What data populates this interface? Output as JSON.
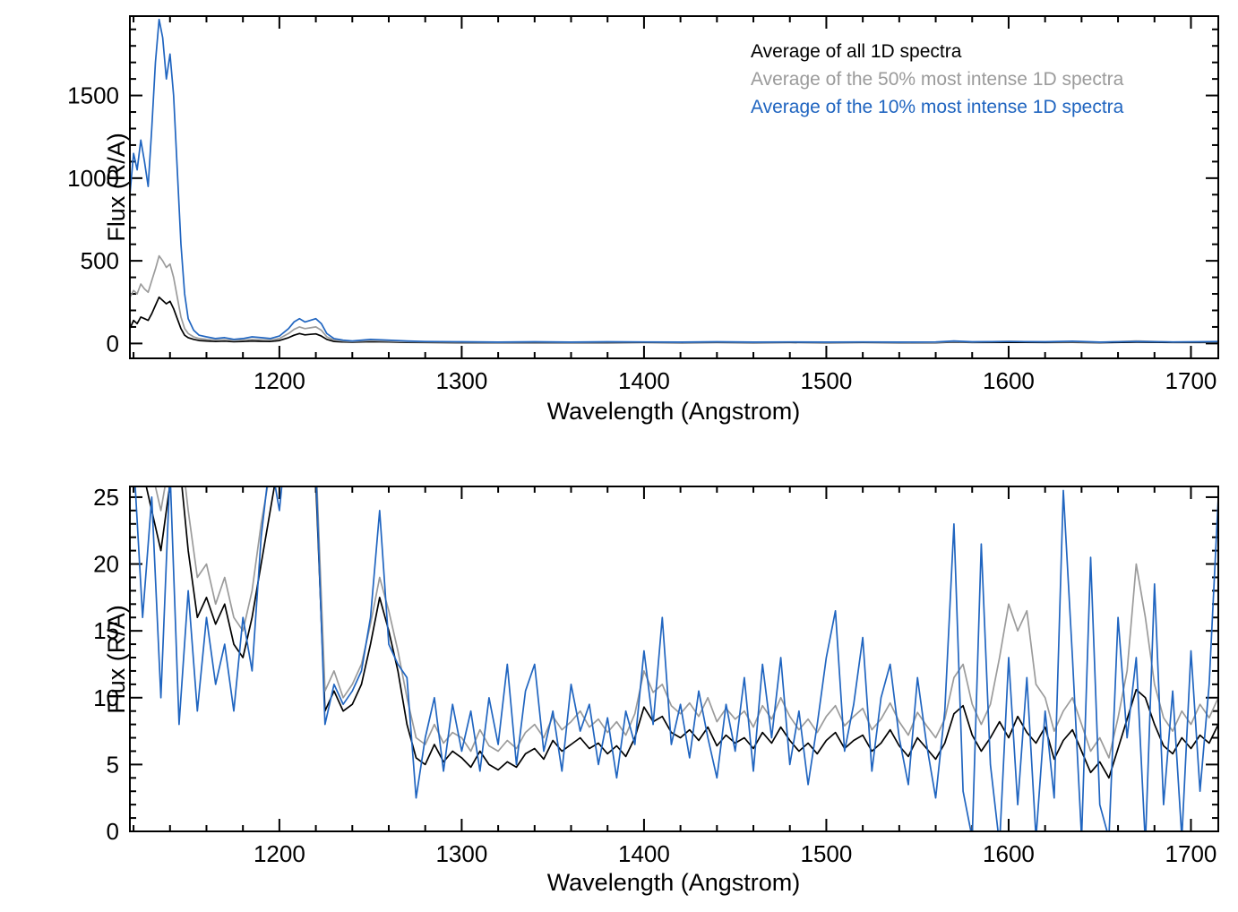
{
  "page": {
    "background": "#ffffff"
  },
  "colors": {
    "black": "#000000",
    "gray": "#9b9b9b",
    "blue": "#2065c0"
  },
  "chart_data": [
    {
      "type": "line",
      "panel": "top",
      "title": "",
      "xlabel": "Wavelength (Angstrom)",
      "ylabel": "Flux (R/A)",
      "xlim": [
        1118,
        1715
      ],
      "ylim": [
        -90,
        1980
      ],
      "xticks": [
        1200,
        1300,
        1400,
        1500,
        1600,
        1700
      ],
      "yticks": [
        0,
        500,
        1000,
        1500
      ],
      "x_minor_step": 20,
      "y_minor_step": 100,
      "grid": false,
      "legend": {
        "position": "top-right",
        "entries": [
          {
            "label": "Average of all 1D spectra",
            "color": "#000000"
          },
          {
            "label": "Average of the 50% most intense 1D spectra",
            "color": "#9b9b9b"
          },
          {
            "label": "Average of the 10% most intense 1D spectra",
            "color": "#2065c0"
          }
        ]
      },
      "x": [
        1118,
        1120,
        1122,
        1124,
        1126,
        1128,
        1130,
        1132,
        1134,
        1136,
        1138,
        1140,
        1142,
        1144,
        1146,
        1148,
        1150,
        1153,
        1156,
        1160,
        1165,
        1170,
        1175,
        1180,
        1185,
        1190,
        1195,
        1200,
        1205,
        1208,
        1211,
        1214,
        1217,
        1220,
        1223,
        1226,
        1230,
        1235,
        1240,
        1250,
        1260,
        1270,
        1280,
        1300,
        1320,
        1340,
        1360,
        1380,
        1400,
        1420,
        1440,
        1460,
        1480,
        1500,
        1520,
        1540,
        1560,
        1570,
        1580,
        1600,
        1620,
        1635,
        1650,
        1670,
        1690,
        1705,
        1715
      ],
      "series": [
        {
          "name": "avg-all",
          "color": "#000000",
          "y": [
            90,
            140,
            120,
            160,
            150,
            140,
            180,
            230,
            280,
            260,
            240,
            255,
            210,
            150,
            90,
            50,
            35,
            25,
            18,
            15,
            12,
            14,
            11,
            12,
            15,
            13,
            12,
            18,
            35,
            50,
            60,
            52,
            55,
            58,
            45,
            25,
            12,
            9,
            8,
            11,
            9,
            7,
            6,
            5,
            5,
            5,
            5,
            5,
            6,
            5,
            6,
            5,
            6,
            5,
            6,
            5,
            5,
            8,
            6,
            7,
            6,
            7,
            5,
            8,
            6,
            6,
            7
          ]
        },
        {
          "name": "avg-50pct",
          "color": "#9b9b9b",
          "y": [
            280,
            320,
            300,
            360,
            330,
            310,
            380,
            450,
            530,
            500,
            460,
            480,
            400,
            280,
            160,
            90,
            60,
            40,
            30,
            25,
            20,
            22,
            18,
            20,
            25,
            22,
            20,
            30,
            60,
            85,
            100,
            90,
            95,
            100,
            80,
            40,
            20,
            15,
            12,
            18,
            14,
            11,
            9,
            8,
            7,
            8,
            7,
            8,
            8,
            7,
            8,
            7,
            8,
            7,
            8,
            7,
            7,
            11,
            8,
            13,
            9,
            10,
            7,
            15,
            8,
            9,
            10
          ]
        },
        {
          "name": "avg-10pct",
          "color": "#2065c0",
          "y": [
            900,
            1150,
            1050,
            1230,
            1100,
            950,
            1300,
            1700,
            1960,
            1850,
            1600,
            1750,
            1500,
            1050,
            600,
            300,
            150,
            80,
            50,
            40,
            30,
            35,
            25,
            30,
            40,
            35,
            30,
            45,
            90,
            130,
            150,
            130,
            140,
            150,
            120,
            60,
            30,
            20,
            15,
            25,
            20,
            15,
            12,
            10,
            8,
            10,
            8,
            10,
            9,
            8,
            10,
            8,
            9,
            8,
            9,
            8,
            9,
            15,
            10,
            12,
            10,
            14,
            8,
            12,
            9,
            10,
            12
          ]
        }
      ]
    },
    {
      "type": "line",
      "panel": "bottom",
      "title": "",
      "xlabel": "Wavelength (Angstrom)",
      "ylabel": "Flux (R/A)",
      "xlim": [
        1118,
        1715
      ],
      "ylim": [
        0,
        25.8
      ],
      "xticks": [
        1200,
        1300,
        1400,
        1500,
        1600,
        1700
      ],
      "yticks": [
        0,
        5,
        10,
        15,
        20,
        25
      ],
      "x_minor_step": 20,
      "y_minor_step": 1,
      "grid": false,
      "series": [
        {
          "name": "avg-all",
          "color": "#000000",
          "x_start": 1120,
          "x_step": 5,
          "y": [
            30,
            27,
            24,
            21,
            26,
            28,
            21,
            16,
            17.5,
            15.5,
            17,
            14,
            13,
            16,
            20,
            24,
            28,
            30,
            32,
            30,
            26,
            9,
            10.5,
            9,
            9.5,
            11,
            14,
            17.5,
            15,
            12,
            8,
            5.5,
            5,
            6.5,
            5.2,
            6,
            5.5,
            4.8,
            6,
            5,
            4.6,
            5.2,
            4.8,
            5.8,
            6.2,
            5.4,
            6.8,
            6,
            6.5,
            7,
            6.2,
            6.6,
            5.8,
            6.4,
            5.6,
            7,
            9.3,
            8.2,
            8.6,
            7.4,
            7,
            7.6,
            6.8,
            7.8,
            6.4,
            7.2,
            6.6,
            7,
            6.2,
            7.4,
            6.6,
            7.8,
            6.8,
            6,
            6.6,
            5.8,
            6.8,
            7.4,
            6.2,
            6.8,
            7.2,
            6,
            6.6,
            7.6,
            6.4,
            5.6,
            7,
            6.2,
            5.4,
            6.6,
            8.8,
            9.4,
            7.2,
            6,
            7,
            8.2,
            7,
            8.6,
            7.4,
            6.6,
            7.8,
            5.4,
            6.8,
            7.6,
            6,
            4.4,
            5.2,
            4,
            6.2,
            8.4,
            10.6,
            10,
            8,
            6.4,
            5.8,
            7,
            6.2,
            7.2,
            6.6,
            8
          ]
        },
        {
          "name": "avg-50pct",
          "color": "#9b9b9b",
          "x_start": 1120,
          "x_step": 5,
          "y": [
            32,
            29,
            27,
            24,
            28,
            30,
            24,
            19,
            20,
            17,
            19,
            16,
            15,
            18,
            23,
            27,
            31,
            33,
            34,
            32,
            28,
            10.5,
            12,
            10,
            11,
            12.5,
            15.5,
            19,
            16.5,
            13.5,
            10,
            7,
            6.5,
            8,
            6.6,
            7.4,
            7,
            6,
            7.6,
            6.4,
            6,
            6.8,
            6.2,
            7.4,
            8,
            7,
            8.6,
            7.6,
            8.2,
            9,
            7.8,
            8.4,
            7.4,
            8.2,
            7.2,
            8.8,
            12,
            10.4,
            11,
            9.4,
            8.8,
            9.6,
            8.6,
            10,
            8.2,
            9.2,
            8.4,
            9,
            7.8,
            9.4,
            8.4,
            10,
            8.6,
            7.6,
            8.4,
            7.4,
            8.6,
            9.4,
            7.9,
            8.6,
            9.2,
            7.6,
            8.4,
            9.6,
            8.2,
            7.2,
            8.9,
            7.9,
            7,
            8.4,
            11.5,
            12.5,
            9.5,
            8,
            9.5,
            13,
            17,
            15,
            16.5,
            11,
            10,
            7.5,
            9,
            10,
            8,
            6,
            7,
            5.5,
            8.5,
            12,
            20,
            16,
            11,
            8.5,
            7.5,
            9,
            8,
            9.5,
            8.5,
            10
          ]
        },
        {
          "name": "avg-10pct",
          "color": "#2065c0",
          "x_start": 1120,
          "x_step": 5,
          "y": [
            28,
            16,
            25,
            10,
            27,
            8,
            18,
            9,
            16,
            11,
            14,
            9,
            16,
            12,
            22,
            28,
            24,
            31,
            28,
            33,
            27,
            8,
            11,
            9.5,
            10.5,
            12,
            16,
            24,
            14,
            12.5,
            11.5,
            2.5,
            7,
            10,
            4.5,
            9.5,
            6,
            9,
            4.5,
            10,
            6.5,
            12.5,
            5,
            10.5,
            12.5,
            6,
            9,
            4.5,
            11,
            7.5,
            9.5,
            5,
            8.5,
            4,
            9,
            6.5,
            13.5,
            8,
            16,
            6.5,
            9.5,
            5.5,
            10.5,
            7,
            4,
            9.5,
            6,
            11.5,
            4.5,
            12.5,
            7,
            13,
            5,
            9,
            3.5,
            8,
            13,
            16.5,
            6,
            9.5,
            14.5,
            4.5,
            10,
            12.5,
            7,
            3.5,
            11.5,
            6.5,
            2.5,
            9,
            23,
            3,
            -0.5,
            21.5,
            5,
            -1,
            13,
            2,
            11.5,
            -0.5,
            9,
            2.5,
            25.5,
            13,
            -0.5,
            20.5,
            2,
            -0.5,
            16,
            7,
            13,
            -1,
            18.5,
            2,
            10.5,
            -0.5,
            13.5,
            3,
            11,
            25
          ]
        }
      ]
    }
  ]
}
